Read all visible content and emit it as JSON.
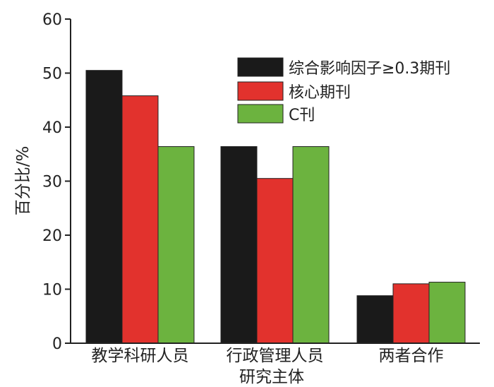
{
  "chart_data": {
    "type": "bar",
    "categories": [
      "教学科研人员",
      "行政管理人员",
      "两者合作"
    ],
    "series": [
      {
        "name": "综合影响因子≥0.3期刊",
        "color": "#1a1a1a",
        "values": [
          50.5,
          36.4,
          8.8
        ]
      },
      {
        "name": "核心期刊",
        "color": "#e2322d",
        "values": [
          45.8,
          30.5,
          11.0
        ]
      },
      {
        "name": "C刊",
        "color": "#6cb33f",
        "values": [
          36.4,
          36.4,
          11.3
        ]
      }
    ],
    "title": "",
    "xlabel": "研究主体",
    "ylabel": "百分比/%",
    "ylim": [
      0,
      60
    ],
    "yticks": [
      0,
      10,
      20,
      30,
      40,
      50,
      60
    ],
    "grid": false,
    "legend_position": "top-right"
  }
}
